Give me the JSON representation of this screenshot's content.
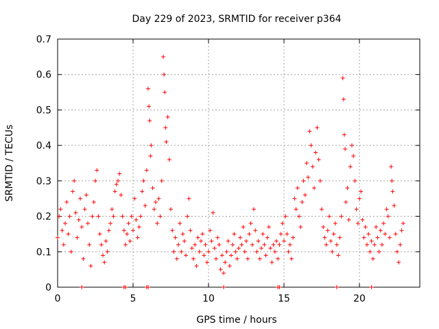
{
  "chart_data": {
    "type": "scatter",
    "title": "Day 229 of 2023, SRMTID for receiver p364",
    "xlabel": "GPS time / hours",
    "ylabel": "SRMTID / TECUs",
    "xlim": [
      0,
      24
    ],
    "ylim": [
      0,
      0.7
    ],
    "xticks": [
      0,
      5,
      10,
      15,
      20
    ],
    "xtick_labels": [
      "0",
      "5",
      "10",
      "15",
      "20"
    ],
    "yticks": [
      0,
      0.1,
      0.2,
      0.3,
      0.4,
      0.5,
      0.6,
      0.7
    ],
    "ytick_labels": [
      "0",
      "0.1",
      "0.2",
      "0.3",
      "0.4",
      "0.5",
      "0.6",
      "0.7"
    ],
    "grid": true,
    "marker": "plus",
    "color": "#ff0000",
    "series": [
      {
        "name": "SRMTID",
        "points": [
          [
            0.0,
            0.14
          ],
          [
            0.1,
            0.2
          ],
          [
            0.2,
            0.22
          ],
          [
            0.3,
            0.16
          ],
          [
            0.4,
            0.12
          ],
          [
            0.5,
            0.18
          ],
          [
            0.6,
            0.24
          ],
          [
            0.7,
            0.15
          ],
          [
            0.8,
            0.2
          ],
          [
            0.9,
            0.1
          ],
          [
            1.0,
            0.27
          ],
          [
            1.1,
            0.3
          ],
          [
            1.2,
            0.21
          ],
          [
            1.3,
            0.14
          ],
          [
            1.4,
            0.19
          ],
          [
            1.5,
            0.25
          ],
          [
            1.6,
            0.17
          ],
          [
            1.7,
            0.08
          ],
          [
            1.8,
            0.22
          ],
          [
            1.9,
            0.26
          ],
          [
            2.0,
            0.18
          ],
          [
            2.1,
            0.12
          ],
          [
            2.2,
            0.06
          ],
          [
            2.3,
            0.2
          ],
          [
            2.4,
            0.24
          ],
          [
            2.5,
            0.3
          ],
          [
            2.6,
            0.33
          ],
          [
            2.7,
            0.2
          ],
          [
            2.8,
            0.15
          ],
          [
            2.9,
            0.12
          ],
          [
            3.0,
            0.09
          ],
          [
            3.1,
            0.07
          ],
          [
            3.2,
            0.13
          ],
          [
            3.3,
            0.1
          ],
          [
            3.4,
            0.16
          ],
          [
            3.5,
            0.18
          ],
          [
            3.6,
            0.22
          ],
          [
            3.7,
            0.2
          ],
          [
            3.8,
            0.27
          ],
          [
            3.9,
            0.29
          ],
          [
            4.0,
            0.3
          ],
          [
            4.1,
            0.32
          ],
          [
            4.2,
            0.26
          ],
          [
            4.3,
            0.2
          ],
          [
            4.4,
            0.16
          ],
          [
            4.5,
            0.12
          ],
          [
            4.6,
            0.15
          ],
          [
            4.7,
            0.18
          ],
          [
            4.8,
            0.13
          ],
          [
            4.9,
            0.2
          ],
          [
            5.0,
            0.16
          ],
          [
            5.1,
            0.25
          ],
          [
            5.2,
            0.19
          ],
          [
            5.3,
            0.14
          ],
          [
            5.4,
            0.17
          ],
          [
            5.5,
            0.2
          ],
          [
            5.6,
            0.27
          ],
          [
            5.7,
            0.3
          ],
          [
            5.8,
            0.23
          ],
          [
            5.9,
            0.33
          ],
          [
            6.0,
            0.56
          ],
          [
            6.05,
            0.51
          ],
          [
            6.1,
            0.47
          ],
          [
            6.15,
            0.37
          ],
          [
            6.2,
            0.4
          ],
          [
            6.3,
            0.28
          ],
          [
            6.4,
            0.22
          ],
          [
            6.5,
            0.24
          ],
          [
            6.6,
            0.18
          ],
          [
            6.7,
            0.25
          ],
          [
            6.8,
            0.2
          ],
          [
            6.9,
            0.3
          ],
          [
            7.0,
            0.65
          ],
          [
            7.05,
            0.6
          ],
          [
            7.1,
            0.55
          ],
          [
            7.15,
            0.45
          ],
          [
            7.2,
            0.41
          ],
          [
            7.3,
            0.48
          ],
          [
            7.4,
            0.36
          ],
          [
            7.5,
            0.22
          ],
          [
            7.6,
            0.16
          ],
          [
            7.7,
            0.1
          ],
          [
            7.8,
            0.14
          ],
          [
            7.9,
            0.08
          ],
          [
            8.0,
            0.12
          ],
          [
            8.1,
            0.18
          ],
          [
            8.2,
            0.1
          ],
          [
            8.3,
            0.15
          ],
          [
            8.4,
            0.13
          ],
          [
            8.5,
            0.09
          ],
          [
            8.6,
            0.2
          ],
          [
            8.7,
            0.25
          ],
          [
            8.8,
            0.16
          ],
          [
            8.9,
            0.11
          ],
          [
            9.0,
            0.08
          ],
          [
            9.1,
            0.12
          ],
          [
            9.2,
            0.06
          ],
          [
            9.3,
            0.14
          ],
          [
            9.4,
            0.1
          ],
          [
            9.5,
            0.13
          ],
          [
            9.6,
            0.15
          ],
          [
            9.7,
            0.09
          ],
          [
            9.8,
            0.12
          ],
          [
            9.9,
            0.07
          ],
          [
            10.0,
            0.1
          ],
          [
            10.1,
            0.16
          ],
          [
            10.2,
            0.13
          ],
          [
            10.3,
            0.21
          ],
          [
            10.4,
            0.11
          ],
          [
            10.5,
            0.08
          ],
          [
            10.6,
            0.14
          ],
          [
            10.7,
            0.12
          ],
          [
            10.8,
            0.05
          ],
          [
            10.9,
            0.09
          ],
          [
            11.0,
            0.04
          ],
          [
            11.1,
            0.07
          ],
          [
            11.2,
            0.1
          ],
          [
            11.3,
            0.13
          ],
          [
            11.4,
            0.06
          ],
          [
            11.5,
            0.09
          ],
          [
            11.6,
            0.12
          ],
          [
            11.7,
            0.15
          ],
          [
            11.8,
            0.1
          ],
          [
            11.9,
            0.08
          ],
          [
            12.0,
            0.11
          ],
          [
            12.1,
            0.14
          ],
          [
            12.2,
            0.12
          ],
          [
            12.3,
            0.17
          ],
          [
            12.4,
            0.1
          ],
          [
            12.5,
            0.13
          ],
          [
            12.6,
            0.08
          ],
          [
            12.7,
            0.15
          ],
          [
            12.8,
            0.18
          ],
          [
            12.9,
            0.12
          ],
          [
            13.0,
            0.22
          ],
          [
            13.1,
            0.16
          ],
          [
            13.2,
            0.1
          ],
          [
            13.3,
            0.13
          ],
          [
            13.4,
            0.08
          ],
          [
            13.5,
            0.11
          ],
          [
            13.6,
            0.15
          ],
          [
            13.7,
            0.12
          ],
          [
            13.8,
            0.09
          ],
          [
            13.9,
            0.14
          ],
          [
            14.0,
            0.17
          ],
          [
            14.1,
            0.11
          ],
          [
            14.2,
            0.07
          ],
          [
            14.3,
            0.12
          ],
          [
            14.4,
            0.1
          ],
          [
            14.5,
            0.13
          ],
          [
            14.6,
            0.08
          ],
          [
            14.7,
            0.12
          ],
          [
            14.8,
            0.15
          ],
          [
            14.9,
            0.18
          ],
          [
            15.0,
            0.13
          ],
          [
            15.1,
            0.2
          ],
          [
            15.2,
            0.15
          ],
          [
            15.3,
            0.1
          ],
          [
            15.4,
            0.12
          ],
          [
            15.5,
            0.08
          ],
          [
            15.6,
            0.14
          ],
          [
            15.7,
            0.25
          ],
          [
            15.8,
            0.22
          ],
          [
            15.9,
            0.28
          ],
          [
            16.0,
            0.2
          ],
          [
            16.1,
            0.17
          ],
          [
            16.2,
            0.24
          ],
          [
            16.3,
            0.3
          ],
          [
            16.4,
            0.26
          ],
          [
            16.5,
            0.35
          ],
          [
            16.6,
            0.31
          ],
          [
            16.7,
            0.44
          ],
          [
            16.8,
            0.4
          ],
          [
            16.9,
            0.34
          ],
          [
            17.0,
            0.28
          ],
          [
            17.1,
            0.38
          ],
          [
            17.2,
            0.45
          ],
          [
            17.3,
            0.36
          ],
          [
            17.4,
            0.3
          ],
          [
            17.5,
            0.22
          ],
          [
            17.6,
            0.17
          ],
          [
            17.7,
            0.14
          ],
          [
            17.8,
            0.12
          ],
          [
            17.9,
            0.16
          ],
          [
            18.0,
            0.2
          ],
          [
            18.1,
            0.13
          ],
          [
            18.2,
            0.1
          ],
          [
            18.3,
            0.15
          ],
          [
            18.4,
            0.18
          ],
          [
            18.5,
            0.12
          ],
          [
            18.6,
            0.09
          ],
          [
            18.7,
            0.14
          ],
          [
            18.8,
            0.2
          ],
          [
            18.9,
            0.59
          ],
          [
            18.95,
            0.53
          ],
          [
            19.0,
            0.43
          ],
          [
            19.05,
            0.39
          ],
          [
            19.1,
            0.24
          ],
          [
            19.2,
            0.28
          ],
          [
            19.3,
            0.19
          ],
          [
            19.4,
            0.34
          ],
          [
            19.5,
            0.4
          ],
          [
            19.6,
            0.37
          ],
          [
            19.7,
            0.3
          ],
          [
            19.8,
            0.22
          ],
          [
            19.9,
            0.18
          ],
          [
            20.0,
            0.25
          ],
          [
            20.1,
            0.27
          ],
          [
            20.2,
            0.19
          ],
          [
            20.3,
            0.14
          ],
          [
            20.4,
            0.17
          ],
          [
            20.5,
            0.12
          ],
          [
            20.6,
            0.15
          ],
          [
            20.7,
            0.1
          ],
          [
            20.8,
            0.13
          ],
          [
            20.9,
            0.08
          ],
          [
            21.0,
            0.12
          ],
          [
            21.1,
            0.17
          ],
          [
            21.2,
            0.14
          ],
          [
            21.3,
            0.1
          ],
          [
            21.4,
            0.16
          ],
          [
            21.5,
            0.12
          ],
          [
            21.6,
            0.18
          ],
          [
            21.7,
            0.15
          ],
          [
            21.8,
            0.22
          ],
          [
            21.9,
            0.2
          ],
          [
            22.0,
            0.14
          ],
          [
            22.1,
            0.34
          ],
          [
            22.15,
            0.3
          ],
          [
            22.2,
            0.27
          ],
          [
            22.3,
            0.23
          ],
          [
            22.4,
            0.15
          ],
          [
            22.5,
            0.1
          ],
          [
            22.6,
            0.07
          ],
          [
            22.7,
            0.12
          ],
          [
            22.8,
            0.16
          ],
          [
            22.9,
            0.18
          ],
          [
            1.6,
            0.0
          ],
          [
            4.4,
            0.0
          ],
          [
            4.5,
            0.0
          ],
          [
            5.9,
            0.0
          ],
          [
            6.0,
            0.0
          ],
          [
            11.0,
            0.0
          ],
          [
            14.6,
            0.0
          ],
          [
            14.7,
            0.0
          ],
          [
            18.5,
            0.0
          ],
          [
            20.8,
            0.0
          ]
        ]
      }
    ]
  }
}
